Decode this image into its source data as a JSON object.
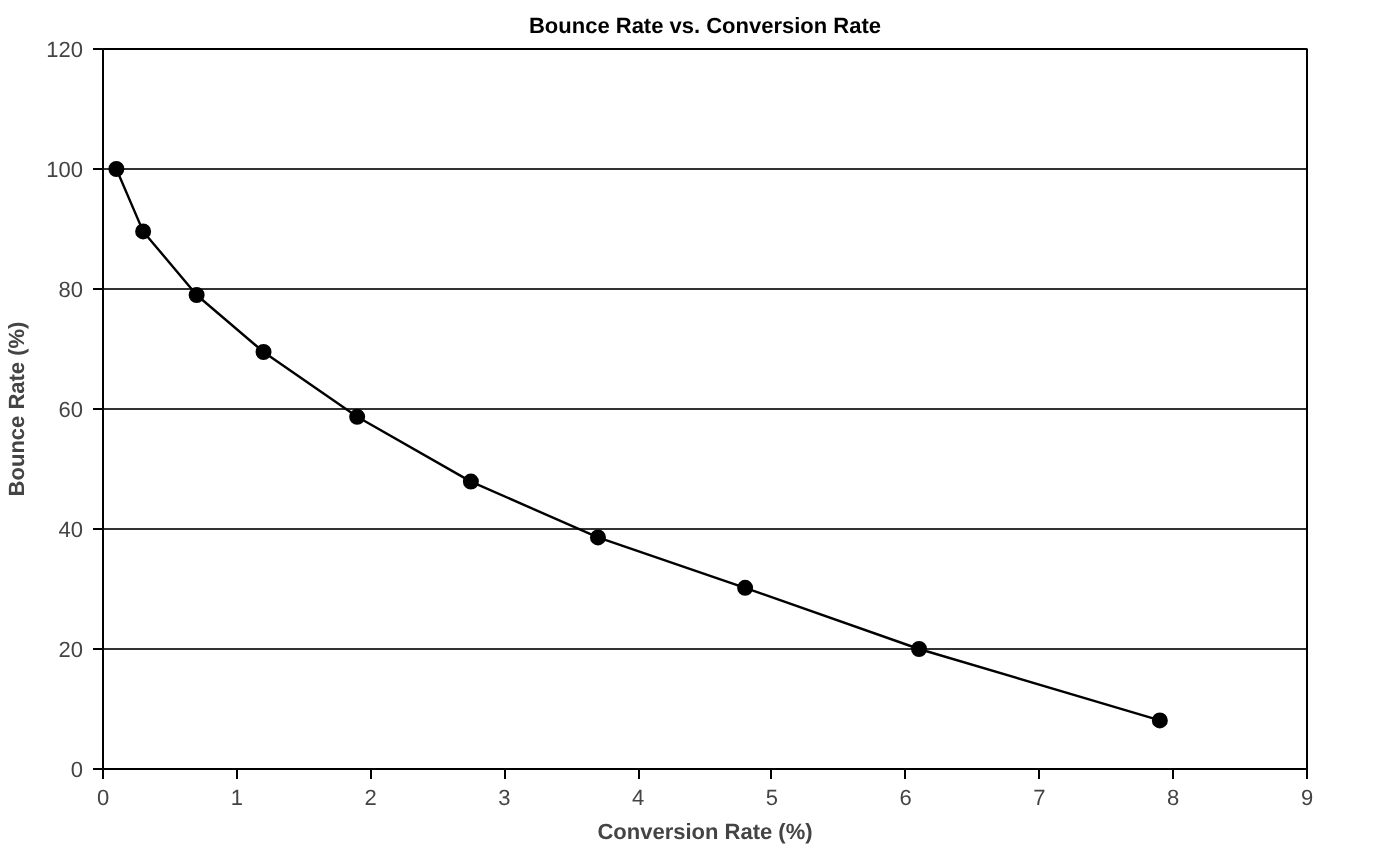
{
  "chart_data": {
    "type": "line",
    "title": "Bounce Rate vs. Conversion Rate",
    "xlabel": "Conversion Rate (%)",
    "ylabel": "Bounce Rate (%)",
    "x": [
      0.1,
      0.3,
      0.7,
      1.2,
      1.9,
      2.75,
      3.7,
      4.8,
      6.1,
      7.9
    ],
    "series": [
      {
        "color": "#000000",
        "values": [
          100,
          89.6,
          79,
          69.5,
          58.7,
          47.9,
          38.6,
          30.2,
          20,
          8.1
        ]
      }
    ],
    "xlim": [
      0,
      9
    ],
    "xticks": [
      0,
      1,
      2,
      3,
      4,
      5,
      6,
      7,
      8,
      9
    ],
    "ylim": [
      0,
      120
    ],
    "yticks": [
      0,
      20,
      40,
      60,
      80,
      100,
      120
    ],
    "grid": "y",
    "marker": "circle",
    "line_style": "solid"
  }
}
